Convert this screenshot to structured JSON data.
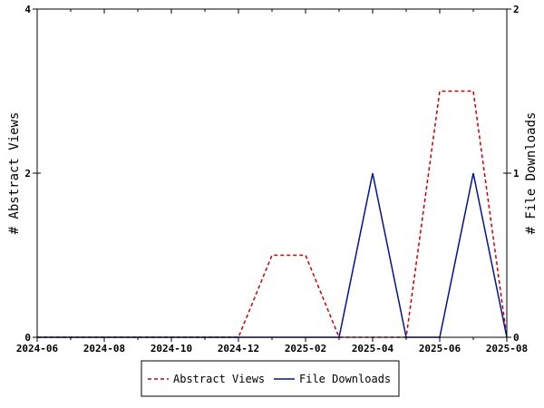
{
  "chart_data": {
    "type": "line",
    "x_ticks": [
      "2024-06",
      "2024-08",
      "2024-10",
      "2024-12",
      "2025-02",
      "2025-04",
      "2025-06",
      "2025-08"
    ],
    "x": [
      "2024-06",
      "2024-07",
      "2024-08",
      "2024-09",
      "2024-10",
      "2024-11",
      "2024-12",
      "2025-01",
      "2025-02",
      "2025-03",
      "2025-04",
      "2025-05",
      "2025-06",
      "2025-07",
      "2025-08"
    ],
    "xlim": [
      "2024-06",
      "2025-08"
    ],
    "ylabel": "# Abstract Views",
    "y2label": "# File Downloads",
    "ylim": [
      0,
      4
    ],
    "y2lim": [
      0,
      2
    ],
    "y_ticks": [
      "0",
      "2",
      "4"
    ],
    "y2_ticks": [
      "0",
      "1",
      "2"
    ],
    "series": [
      {
        "name": "Abstract Views",
        "axis": "left",
        "color": "#cc0000",
        "style": "dashed",
        "values": [
          0,
          0,
          0,
          0,
          0,
          0,
          0,
          1,
          1,
          0,
          0,
          0,
          3,
          3,
          0
        ]
      },
      {
        "name": "File Downloads",
        "axis": "right",
        "color": "#00129a",
        "style": "solid",
        "values": [
          0,
          0,
          0,
          0,
          0,
          0,
          0,
          0,
          0,
          0,
          1,
          0,
          0,
          1,
          0
        ]
      }
    ],
    "legend_position": "bottom-center",
    "grid": false
  }
}
